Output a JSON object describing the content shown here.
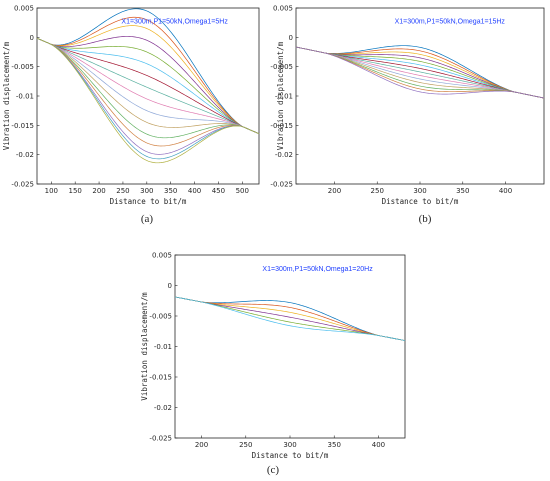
{
  "palette": [
    "#0072BD",
    "#D95319",
    "#EDB120",
    "#7E2F8E",
    "#77AC30",
    "#4DBEEE",
    "#A2142F",
    "#5AB0A0",
    "#E07BB0",
    "#8FA8D8",
    "#C0A060",
    "#60B060",
    "#D08040",
    "#9070C0",
    "#40A0C0",
    "#B0B040"
  ],
  "chart_data": [
    {
      "type": "line",
      "panel_id": "a",
      "caption": "(a)",
      "annotation": "X1=300m,P1=50kN,Omega1=5Hz",
      "xlabel": "Distance to bit/m",
      "ylabel": "Vibration displacement/m",
      "xlim": [
        70,
        535
      ],
      "ylim": [
        -0.025,
        0.005
      ],
      "xticks": [
        100,
        150,
        200,
        250,
        300,
        350,
        400,
        450,
        500
      ],
      "yticks": [
        0.005,
        0,
        -0.005,
        -0.01,
        -0.015,
        -0.02,
        -0.025
      ],
      "ytick_labels": [
        "0.005",
        "0",
        "-0.005",
        "-0.01",
        "-0.015",
        "-0.02",
        "-0.025"
      ],
      "grid": false,
      "node_x": [
        100,
        500
      ],
      "node_y": [
        -0.0012,
        -0.0152
      ],
      "x_span": [
        70,
        535
      ],
      "peak_x": 300,
      "peak_values": [
        0.0045,
        0.003,
        0.0015,
        -0.0005,
        -0.0025,
        -0.0045,
        -0.0065,
        -0.0085,
        -0.0105,
        -0.0125,
        -0.0145,
        -0.0165,
        -0.018,
        -0.0195,
        -0.0203,
        -0.021
      ]
    },
    {
      "type": "line",
      "panel_id": "b",
      "caption": "(b)",
      "annotation": "X1=300m,P1=50kN,Omega1=15Hz",
      "xlabel": "Distance to bit/m",
      "ylabel": "Vibration displacement/m",
      "xlim": [
        155,
        445
      ],
      "ylim": [
        -0.025,
        0.005
      ],
      "xticks": [
        200,
        250,
        300,
        350,
        400
      ],
      "yticks": [
        0.005,
        0,
        -0.005,
        -0.01,
        -0.015,
        -0.02,
        -0.025
      ],
      "ytick_labels": [
        "0.005",
        "0",
        "-0.005",
        "-0.01",
        "-0.015",
        "-0.02",
        "-0.025"
      ],
      "grid": false,
      "node_x": [
        190,
        410
      ],
      "node_y": [
        -0.0027,
        -0.0093
      ],
      "x_span": [
        155,
        445
      ],
      "peak_x": 300,
      "peak_values": [
        -0.0017,
        -0.0023,
        -0.0029,
        -0.0035,
        -0.0041,
        -0.0047,
        -0.0053,
        -0.0059,
        -0.0065,
        -0.0071,
        -0.0077,
        -0.0083,
        -0.0088,
        -0.0093
      ]
    },
    {
      "type": "line",
      "panel_id": "c",
      "caption": "(c)",
      "annotation": "X1=300m,P1=50kN,Omega1=20Hz",
      "xlabel": "Distance to bit/m",
      "ylabel": "Vibration displacement/m",
      "xlim": [
        170,
        430
      ],
      "ylim": [
        -0.025,
        0.005
      ],
      "xticks": [
        200,
        250,
        300,
        350,
        400
      ],
      "yticks": [
        0.005,
        0,
        -0.005,
        -0.01,
        -0.015,
        -0.02,
        -0.025
      ],
      "ytick_labels": [
        "0.005",
        "0",
        "-0.005",
        "-0.01",
        "-0.015",
        "-0.02",
        "-0.025"
      ],
      "grid": false,
      "node_x": [
        200,
        400
      ],
      "node_y": [
        -0.0027,
        -0.0082
      ],
      "x_span": [
        170,
        430
      ],
      "peak_x": 300,
      "peak_values": [
        -0.0028,
        -0.0036,
        -0.0044,
        -0.0052,
        -0.006,
        -0.0066
      ]
    }
  ]
}
